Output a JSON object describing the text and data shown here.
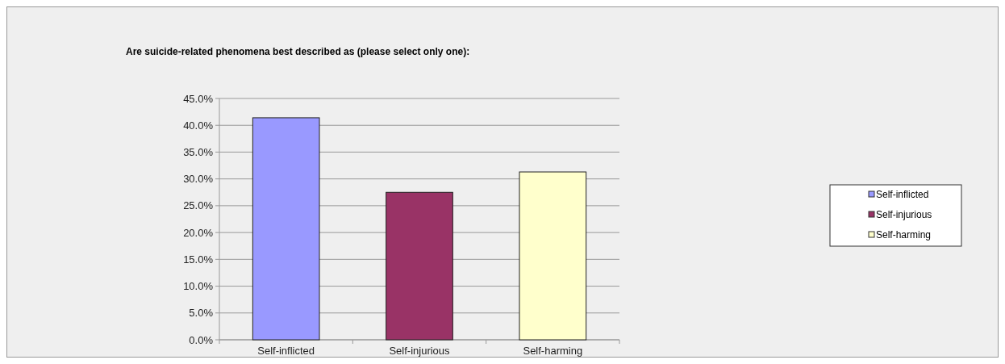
{
  "chart_data": {
    "type": "bar",
    "title": "Are suicide-related phenomena best described as (please select only one):",
    "categories": [
      "Self-inflicted",
      "Self-injurious",
      "Self-harming"
    ],
    "series": [
      {
        "name": "Self-inflicted",
        "color": "#9999ff",
        "values": [
          41.4,
          null,
          null
        ]
      },
      {
        "name": "Self-injurious",
        "color": "#993366",
        "values": [
          null,
          27.5,
          null
        ]
      },
      {
        "name": "Self-harming",
        "color": "#ffffcc",
        "values": [
          null,
          null,
          31.3
        ]
      }
    ],
    "ylim": [
      0,
      45
    ],
    "yticks": [
      {
        "value": 0,
        "label": "0.0%"
      },
      {
        "value": 5,
        "label": "5.0%"
      },
      {
        "value": 10,
        "label": "10.0%"
      },
      {
        "value": 15,
        "label": "15.0%"
      },
      {
        "value": 20,
        "label": "20.0%"
      },
      {
        "value": 25,
        "label": "25.0%"
      },
      {
        "value": 30,
        "label": "30.0%"
      },
      {
        "value": 35,
        "label": "35.0%"
      },
      {
        "value": 40,
        "label": "40.0%"
      },
      {
        "value": 45,
        "label": "45.0%"
      }
    ],
    "grid": "y",
    "legend": "right"
  }
}
